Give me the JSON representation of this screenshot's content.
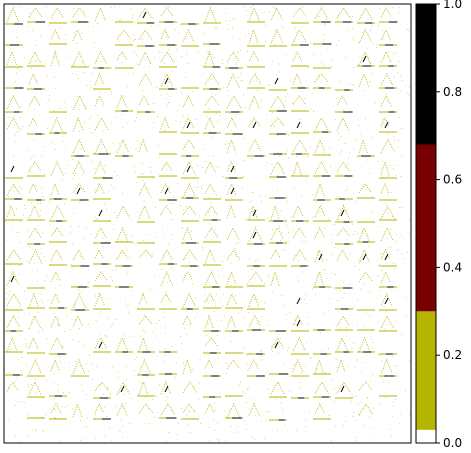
{
  "chart_data": {
    "type": "heatmap",
    "title": "",
    "xlabel": "",
    "ylabel": "",
    "axes_ticks_visible": false,
    "colorbar": {
      "range": [
        0.0,
        1.0
      ],
      "tick_values": [
        0.0,
        0.2,
        0.4,
        0.6,
        0.8,
        1.0
      ],
      "tick_labels": [
        "0.0",
        "0.2",
        "0.4",
        "0.6",
        "0.8",
        "1.0"
      ],
      "bands": [
        {
          "from": 0.0,
          "to": 0.03,
          "color": "#ffffff"
        },
        {
          "from": 0.03,
          "to": 0.3,
          "color": "#b5b500"
        },
        {
          "from": 0.3,
          "to": 0.68,
          "color": "#770000"
        },
        {
          "from": 0.68,
          "to": 1.0,
          "color": "#000000"
        }
      ]
    },
    "pattern": {
      "description_values": "sparse repeating triangle/line glyphs of small values",
      "dominant_value_color": "#b5b500",
      "secondary_value_color": "#000000",
      "background_color": "#ffffff"
    }
  }
}
